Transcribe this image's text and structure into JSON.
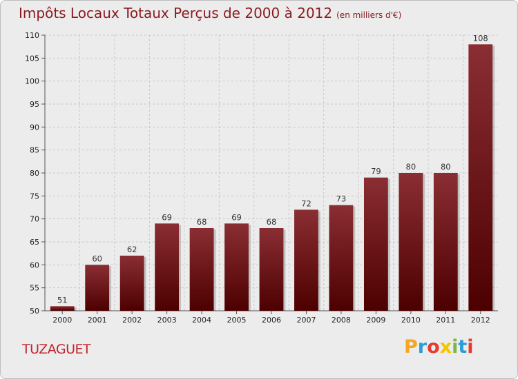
{
  "header": {
    "title": "Impôts Locaux Totaux Perçus de 2000 à 2012",
    "subtitle": "(en milliers d'€)"
  },
  "footer": {
    "commune": "TUZAGUET",
    "logo_text": "Proxiti",
    "logo_colors": [
      "#f5a623",
      "#2a9fd6",
      "#e63b2e",
      "#f2c500",
      "#7ab648",
      "#2a9fd6",
      "#e63b2e"
    ]
  },
  "colors": {
    "bar_light": "#8a2e33",
    "bar_dark": "#4d0000",
    "title": "#8b1a1f",
    "commune": "#c2222a"
  },
  "chart_data": {
    "type": "bar",
    "categories": [
      "2000",
      "2001",
      "2002",
      "2003",
      "2004",
      "2005",
      "2006",
      "2007",
      "2008",
      "2009",
      "2010",
      "2011",
      "2012"
    ],
    "values": [
      51,
      60,
      62,
      69,
      68,
      69,
      68,
      72,
      73,
      79,
      80,
      80,
      108
    ],
    "value_labels": [
      "51",
      "60",
      "62",
      "69",
      "68",
      "69",
      "68",
      "72",
      "73",
      "79",
      "80",
      "80",
      "108"
    ],
    "ylim": [
      50,
      110
    ],
    "yticks": [
      50,
      55,
      60,
      65,
      70,
      75,
      80,
      85,
      90,
      95,
      100,
      105,
      110
    ],
    "ytick_labels": [
      "50",
      "55",
      "60",
      "65",
      "70",
      "75",
      "80",
      "85",
      "90",
      "95",
      "100",
      "105",
      "110"
    ],
    "grid": true
  }
}
